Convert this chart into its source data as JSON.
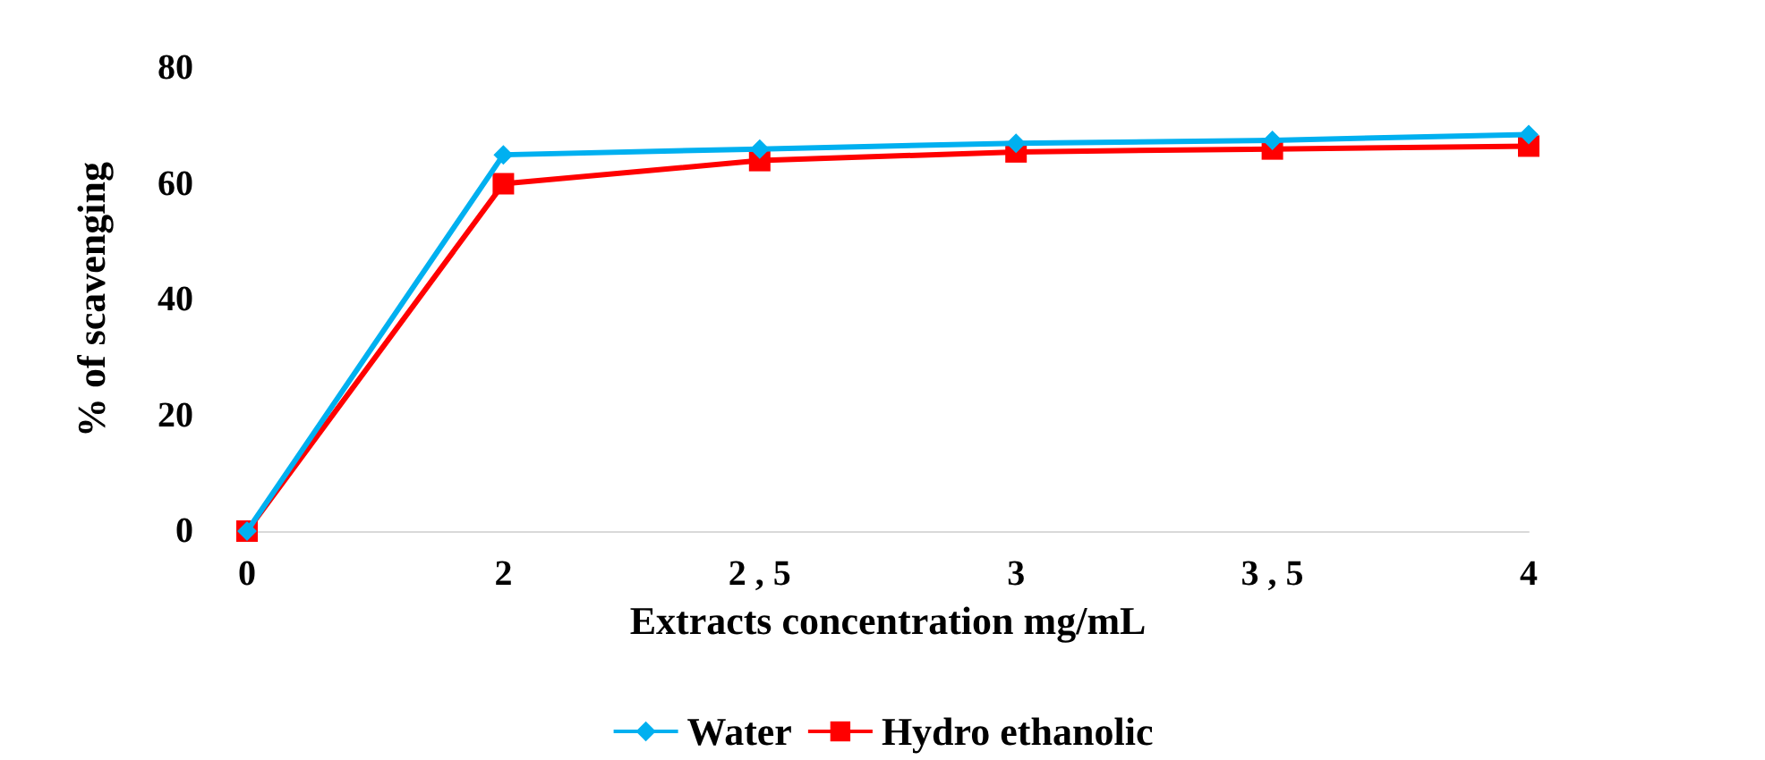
{
  "chart_data": {
    "type": "line",
    "xlabel": "Extracts concentration mg/mL",
    "ylabel": "% of scavenging",
    "categories": [
      "0",
      "2",
      "2 , 5",
      "3",
      "3 , 5",
      "4"
    ],
    "series": [
      {
        "name": "Water",
        "color": "#00b0f0",
        "marker": "diamond",
        "values": [
          0,
          65,
          66,
          67,
          67.5,
          68.5
        ]
      },
      {
        "name": "Hydro ethanolic",
        "color": "#ff0000",
        "marker": "square",
        "values": [
          0,
          60,
          64,
          65.5,
          66,
          66.5
        ]
      }
    ],
    "ylim": [
      0,
      80
    ],
    "yticks": [
      0,
      20,
      40,
      60,
      80
    ],
    "grid": false,
    "legend": "bottom"
  }
}
